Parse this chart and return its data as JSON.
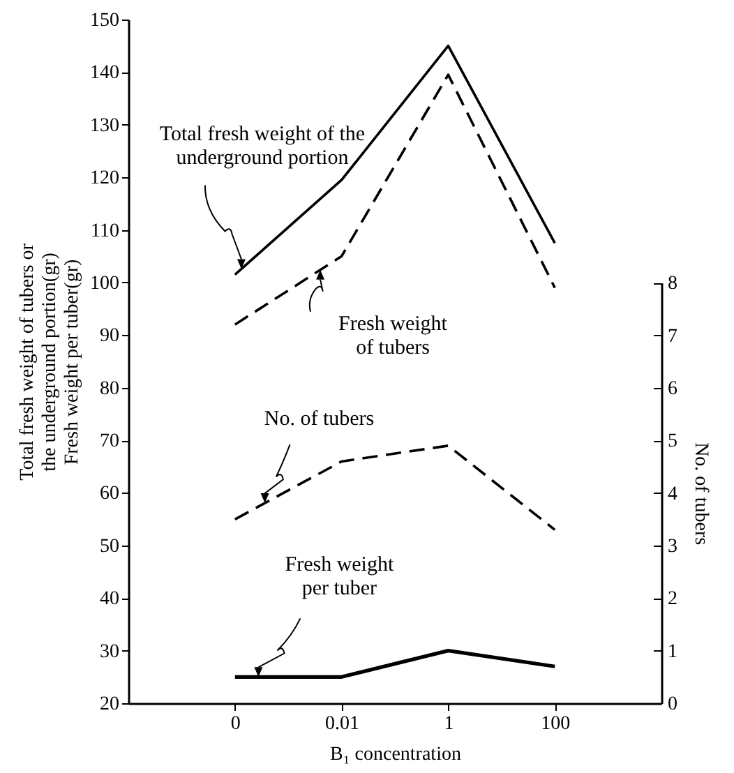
{
  "chart_data": {
    "type": "line",
    "xlabel": "B₁ concentration",
    "ylabel": "Total fresh weight of tubers or the underground portion(gr) Fresh weight per tuber(gr)",
    "y2label": "No. of tubers",
    "categories": [
      "0",
      "0.01",
      "1",
      "100"
    ],
    "ylim": [
      20,
      150
    ],
    "yticks": [
      20,
      30,
      40,
      50,
      60,
      70,
      80,
      90,
      100,
      110,
      120,
      130,
      140,
      150
    ],
    "y2lim": [
      0,
      8
    ],
    "y2ticks": [
      0,
      1,
      2,
      3,
      4,
      5,
      6,
      7,
      8
    ],
    "grid": false,
    "marker": "none",
    "series": [
      {
        "name": "Total fresh weight of the underground portion",
        "color": "#000000",
        "line_style": "solid",
        "values": [
          101.5,
          119.5,
          145,
          107.5
        ]
      },
      {
        "name": "Fresh weight of tubers",
        "color": "#000000",
        "line_style": "dashed",
        "values": [
          92,
          105,
          139.5,
          99
        ]
      },
      {
        "name": "No. of tubers",
        "color": "#000000",
        "line_style": "dashed",
        "axis": "y2",
        "values": [
          3.5,
          4.6,
          4.9,
          3.3
        ]
      },
      {
        "name": "Fresh weight per tuber",
        "color": "#000000",
        "line_style": "solid",
        "values": [
          25,
          25,
          30,
          27
        ]
      }
    ]
  }
}
